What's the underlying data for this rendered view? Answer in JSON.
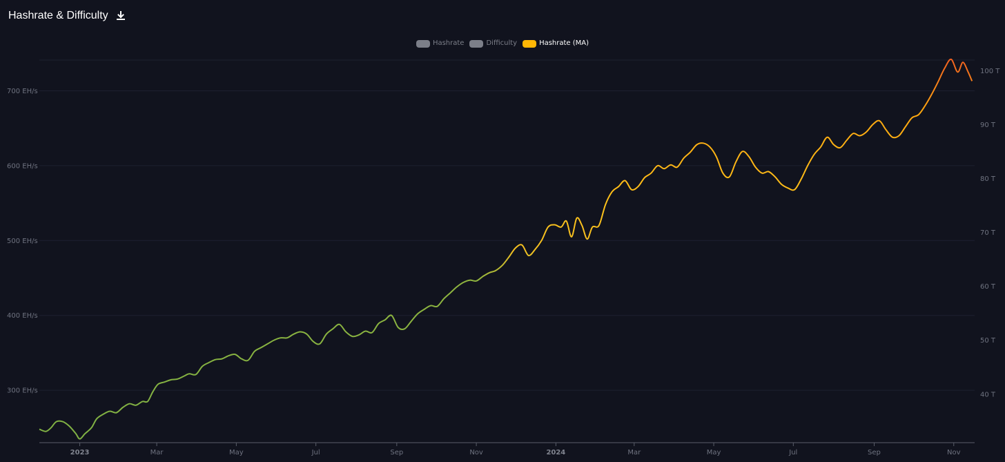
{
  "header": {
    "title": "Hashrate & Difficulty",
    "download_icon": "download-icon"
  },
  "legend": [
    {
      "label": "Hashrate",
      "color": "#7c7f89",
      "active": false
    },
    {
      "label": "Difficulty",
      "color": "#7c7f89",
      "active": false
    },
    {
      "label": "Hashrate (MA)",
      "color": "#ffb705",
      "active": true
    }
  ],
  "chart_data": {
    "type": "line",
    "title": "Hashrate & Difficulty",
    "x_axis": {
      "tick_labels": [
        "2023",
        "Mar",
        "May",
        "Jul",
        "Sep",
        "Nov",
        "2024",
        "Mar",
        "May",
        "Jul",
        "Sep",
        "Nov"
      ],
      "tick_dates": [
        "2023-01-01",
        "2023-03-01",
        "2023-05-01",
        "2023-07-01",
        "2023-09-01",
        "2023-11-01",
        "2024-01-01",
        "2024-03-01",
        "2024-05-01",
        "2024-07-01",
        "2024-09-01",
        "2024-11-01"
      ],
      "bold_labels": [
        "2023",
        "2024"
      ],
      "range": [
        "2022-12-01",
        "2024-11-17"
      ]
    },
    "y_axis_left": {
      "unit": "EH/s",
      "tick_labels": [
        "300 EH/s",
        "400 EH/s",
        "500 EH/s",
        "600 EH/s",
        "700 EH/s"
      ],
      "ticks": [
        300,
        400,
        500,
        600,
        700
      ],
      "range": [
        230,
        741
      ]
    },
    "y_axis_right": {
      "unit": "T",
      "tick_labels": [
        "40 T",
        "50 T",
        "60 T",
        "70 T",
        "80 T",
        "90 T",
        "100 T"
      ],
      "ticks": [
        40,
        50,
        60,
        70,
        80,
        90,
        100
      ],
      "range": [
        31,
        102
      ]
    },
    "grid": true,
    "legend_position": "top-center",
    "series": [
      {
        "name": "Hashrate (MA)",
        "axis": "left",
        "color_gradient": [
          "#7fb144",
          "#ffc21a",
          "#ffb705",
          "#f06c20"
        ],
        "points": [
          [
            "2022-12-01",
            248
          ],
          [
            "2022-12-06",
            245
          ],
          [
            "2022-12-10",
            250
          ],
          [
            "2022-12-14",
            258
          ],
          [
            "2022-12-19",
            258
          ],
          [
            "2022-12-24",
            252
          ],
          [
            "2022-12-29",
            242
          ],
          [
            "2023-01-01",
            235
          ],
          [
            "2023-01-05",
            242
          ],
          [
            "2023-01-10",
            250
          ],
          [
            "2023-01-14",
            262
          ],
          [
            "2023-01-19",
            268
          ],
          [
            "2023-01-24",
            272
          ],
          [
            "2023-01-29",
            270
          ],
          [
            "2023-02-03",
            277
          ],
          [
            "2023-02-08",
            282
          ],
          [
            "2023-02-13",
            280
          ],
          [
            "2023-02-18",
            285
          ],
          [
            "2023-02-22",
            285
          ],
          [
            "2023-02-26",
            298
          ],
          [
            "2023-03-02",
            308
          ],
          [
            "2023-03-07",
            311
          ],
          [
            "2023-03-12",
            314
          ],
          [
            "2023-03-17",
            315
          ],
          [
            "2023-03-22",
            319
          ],
          [
            "2023-03-26",
            322
          ],
          [
            "2023-03-31",
            321
          ],
          [
            "2023-04-05",
            332
          ],
          [
            "2023-04-10",
            337
          ],
          [
            "2023-04-15",
            341
          ],
          [
            "2023-04-20",
            342
          ],
          [
            "2023-04-25",
            346
          ],
          [
            "2023-04-30",
            348
          ],
          [
            "2023-05-05",
            342
          ],
          [
            "2023-05-10",
            340
          ],
          [
            "2023-05-15",
            352
          ],
          [
            "2023-05-20",
            357
          ],
          [
            "2023-05-25",
            362
          ],
          [
            "2023-05-30",
            367
          ],
          [
            "2023-06-04",
            370
          ],
          [
            "2023-06-09",
            370
          ],
          [
            "2023-06-14",
            375
          ],
          [
            "2023-06-19",
            378
          ],
          [
            "2023-06-24",
            375
          ],
          [
            "2023-06-29",
            365
          ],
          [
            "2023-07-04",
            362
          ],
          [
            "2023-07-09",
            375
          ],
          [
            "2023-07-14",
            382
          ],
          [
            "2023-07-19",
            388
          ],
          [
            "2023-07-24",
            378
          ],
          [
            "2023-07-29",
            372
          ],
          [
            "2023-08-03",
            374
          ],
          [
            "2023-08-08",
            379
          ],
          [
            "2023-08-13",
            377
          ],
          [
            "2023-08-18",
            389
          ],
          [
            "2023-08-23",
            394
          ],
          [
            "2023-08-28",
            400
          ],
          [
            "2023-09-02",
            384
          ],
          [
            "2023-09-07",
            382
          ],
          [
            "2023-09-12",
            392
          ],
          [
            "2023-09-17",
            402
          ],
          [
            "2023-09-22",
            408
          ],
          [
            "2023-09-27",
            413
          ],
          [
            "2023-10-02",
            412
          ],
          [
            "2023-10-07",
            422
          ],
          [
            "2023-10-12",
            430
          ],
          [
            "2023-10-17",
            438
          ],
          [
            "2023-10-22",
            444
          ],
          [
            "2023-10-27",
            447
          ],
          [
            "2023-11-01",
            446
          ],
          [
            "2023-11-06",
            452
          ],
          [
            "2023-11-11",
            457
          ],
          [
            "2023-11-16",
            460
          ],
          [
            "2023-11-21",
            467
          ],
          [
            "2023-11-26",
            478
          ],
          [
            "2023-12-01",
            490
          ],
          [
            "2023-12-06",
            494
          ],
          [
            "2023-12-11",
            480
          ],
          [
            "2023-12-16",
            488
          ],
          [
            "2023-12-21",
            500
          ],
          [
            "2023-12-26",
            518
          ],
          [
            "2023-12-31",
            521
          ],
          [
            "2024-01-05",
            518
          ],
          [
            "2024-01-09",
            526
          ],
          [
            "2024-01-13",
            505
          ],
          [
            "2024-01-17",
            530
          ],
          [
            "2024-01-21",
            520
          ],
          [
            "2024-01-25",
            502
          ],
          [
            "2024-01-29",
            518
          ],
          [
            "2024-02-03",
            520
          ],
          [
            "2024-02-08",
            548
          ],
          [
            "2024-02-13",
            565
          ],
          [
            "2024-02-18",
            572
          ],
          [
            "2024-02-23",
            580
          ],
          [
            "2024-02-28",
            568
          ],
          [
            "2024-03-04",
            572
          ],
          [
            "2024-03-09",
            584
          ],
          [
            "2024-03-14",
            590
          ],
          [
            "2024-03-19",
            600
          ],
          [
            "2024-03-24",
            596
          ],
          [
            "2024-03-29",
            601
          ],
          [
            "2024-04-03",
            598
          ],
          [
            "2024-04-08",
            610
          ],
          [
            "2024-04-13",
            618
          ],
          [
            "2024-04-18",
            628
          ],
          [
            "2024-04-23",
            630
          ],
          [
            "2024-04-28",
            625
          ],
          [
            "2024-05-03",
            612
          ],
          [
            "2024-05-08",
            590
          ],
          [
            "2024-05-13",
            585
          ],
          [
            "2024-05-18",
            605
          ],
          [
            "2024-05-23",
            619
          ],
          [
            "2024-05-28",
            612
          ],
          [
            "2024-06-02",
            598
          ],
          [
            "2024-06-07",
            590
          ],
          [
            "2024-06-12",
            592
          ],
          [
            "2024-06-17",
            585
          ],
          [
            "2024-06-22",
            575
          ],
          [
            "2024-06-27",
            570
          ],
          [
            "2024-07-02",
            568
          ],
          [
            "2024-07-07",
            582
          ],
          [
            "2024-07-12",
            600
          ],
          [
            "2024-07-17",
            615
          ],
          [
            "2024-07-22",
            625
          ],
          [
            "2024-07-27",
            638
          ],
          [
            "2024-08-01",
            628
          ],
          [
            "2024-08-06",
            624
          ],
          [
            "2024-08-11",
            634
          ],
          [
            "2024-08-16",
            643
          ],
          [
            "2024-08-21",
            640
          ],
          [
            "2024-08-26",
            645
          ],
          [
            "2024-08-31",
            655
          ],
          [
            "2024-09-05",
            660
          ],
          [
            "2024-09-10",
            648
          ],
          [
            "2024-09-15",
            638
          ],
          [
            "2024-09-20",
            640
          ],
          [
            "2024-09-25",
            652
          ],
          [
            "2024-09-30",
            664
          ],
          [
            "2024-10-05",
            668
          ],
          [
            "2024-10-10",
            680
          ],
          [
            "2024-10-15",
            695
          ],
          [
            "2024-10-20",
            712
          ],
          [
            "2024-10-25",
            730
          ],
          [
            "2024-10-30",
            742
          ],
          [
            "2024-11-04",
            725
          ],
          [
            "2024-11-08",
            738
          ],
          [
            "2024-11-12",
            725
          ],
          [
            "2024-11-15",
            713
          ]
        ]
      }
    ]
  }
}
